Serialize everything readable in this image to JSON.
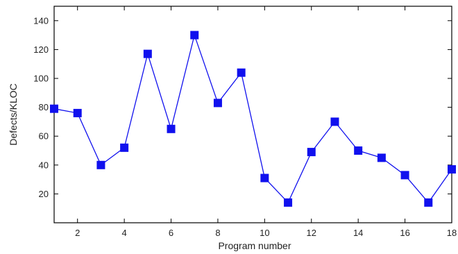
{
  "chart_data": {
    "type": "line",
    "title": "",
    "xlabel": "Program number",
    "ylabel": "Defects/KLOC",
    "xlim": [
      1,
      18
    ],
    "ylim": [
      0,
      150
    ],
    "xticks": [
      2,
      4,
      6,
      8,
      10,
      12,
      14,
      16,
      18
    ],
    "yticks": [
      20,
      40,
      60,
      80,
      100,
      120,
      140
    ],
    "grid": false,
    "legend": "none",
    "series": [
      {
        "color": "#1010ee",
        "marker": "square",
        "x": [
          1,
          2,
          3,
          4,
          5,
          6,
          7,
          8,
          9,
          10,
          11,
          12,
          13,
          14,
          15,
          16,
          17,
          18
        ],
        "y": [
          79,
          76,
          40,
          52,
          117,
          65,
          130,
          83,
          104,
          31,
          14,
          49,
          70,
          50,
          45,
          33,
          14,
          37
        ]
      }
    ]
  }
}
